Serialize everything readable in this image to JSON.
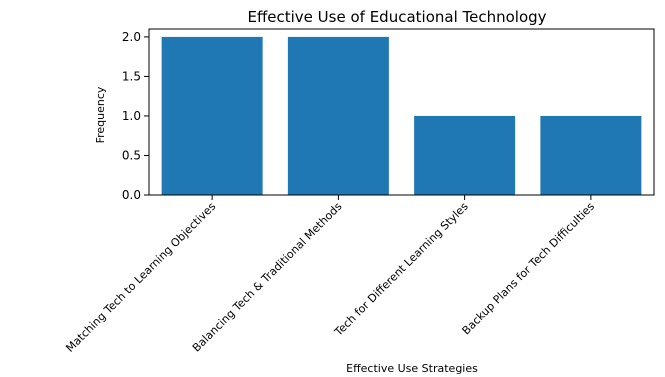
{
  "chart_data": {
    "type": "bar",
    "title": "Effective Use of Educational Technology",
    "xlabel": "Effective Use Strategies",
    "ylabel": "Frequency",
    "categories": [
      "Matching Tech to Learning Objectives",
      "Balancing Tech & Traditional Methods",
      "Tech for Different Learning Styles",
      "Backup Plans for Tech Difficulties"
    ],
    "values": [
      2,
      2,
      1,
      1
    ],
    "ylim": [
      0,
      2.1
    ],
    "yticks": [
      "0.0",
      "0.5",
      "1.0",
      "1.5",
      "2.0"
    ],
    "grid": false,
    "bar_color": "#1f77b4"
  }
}
